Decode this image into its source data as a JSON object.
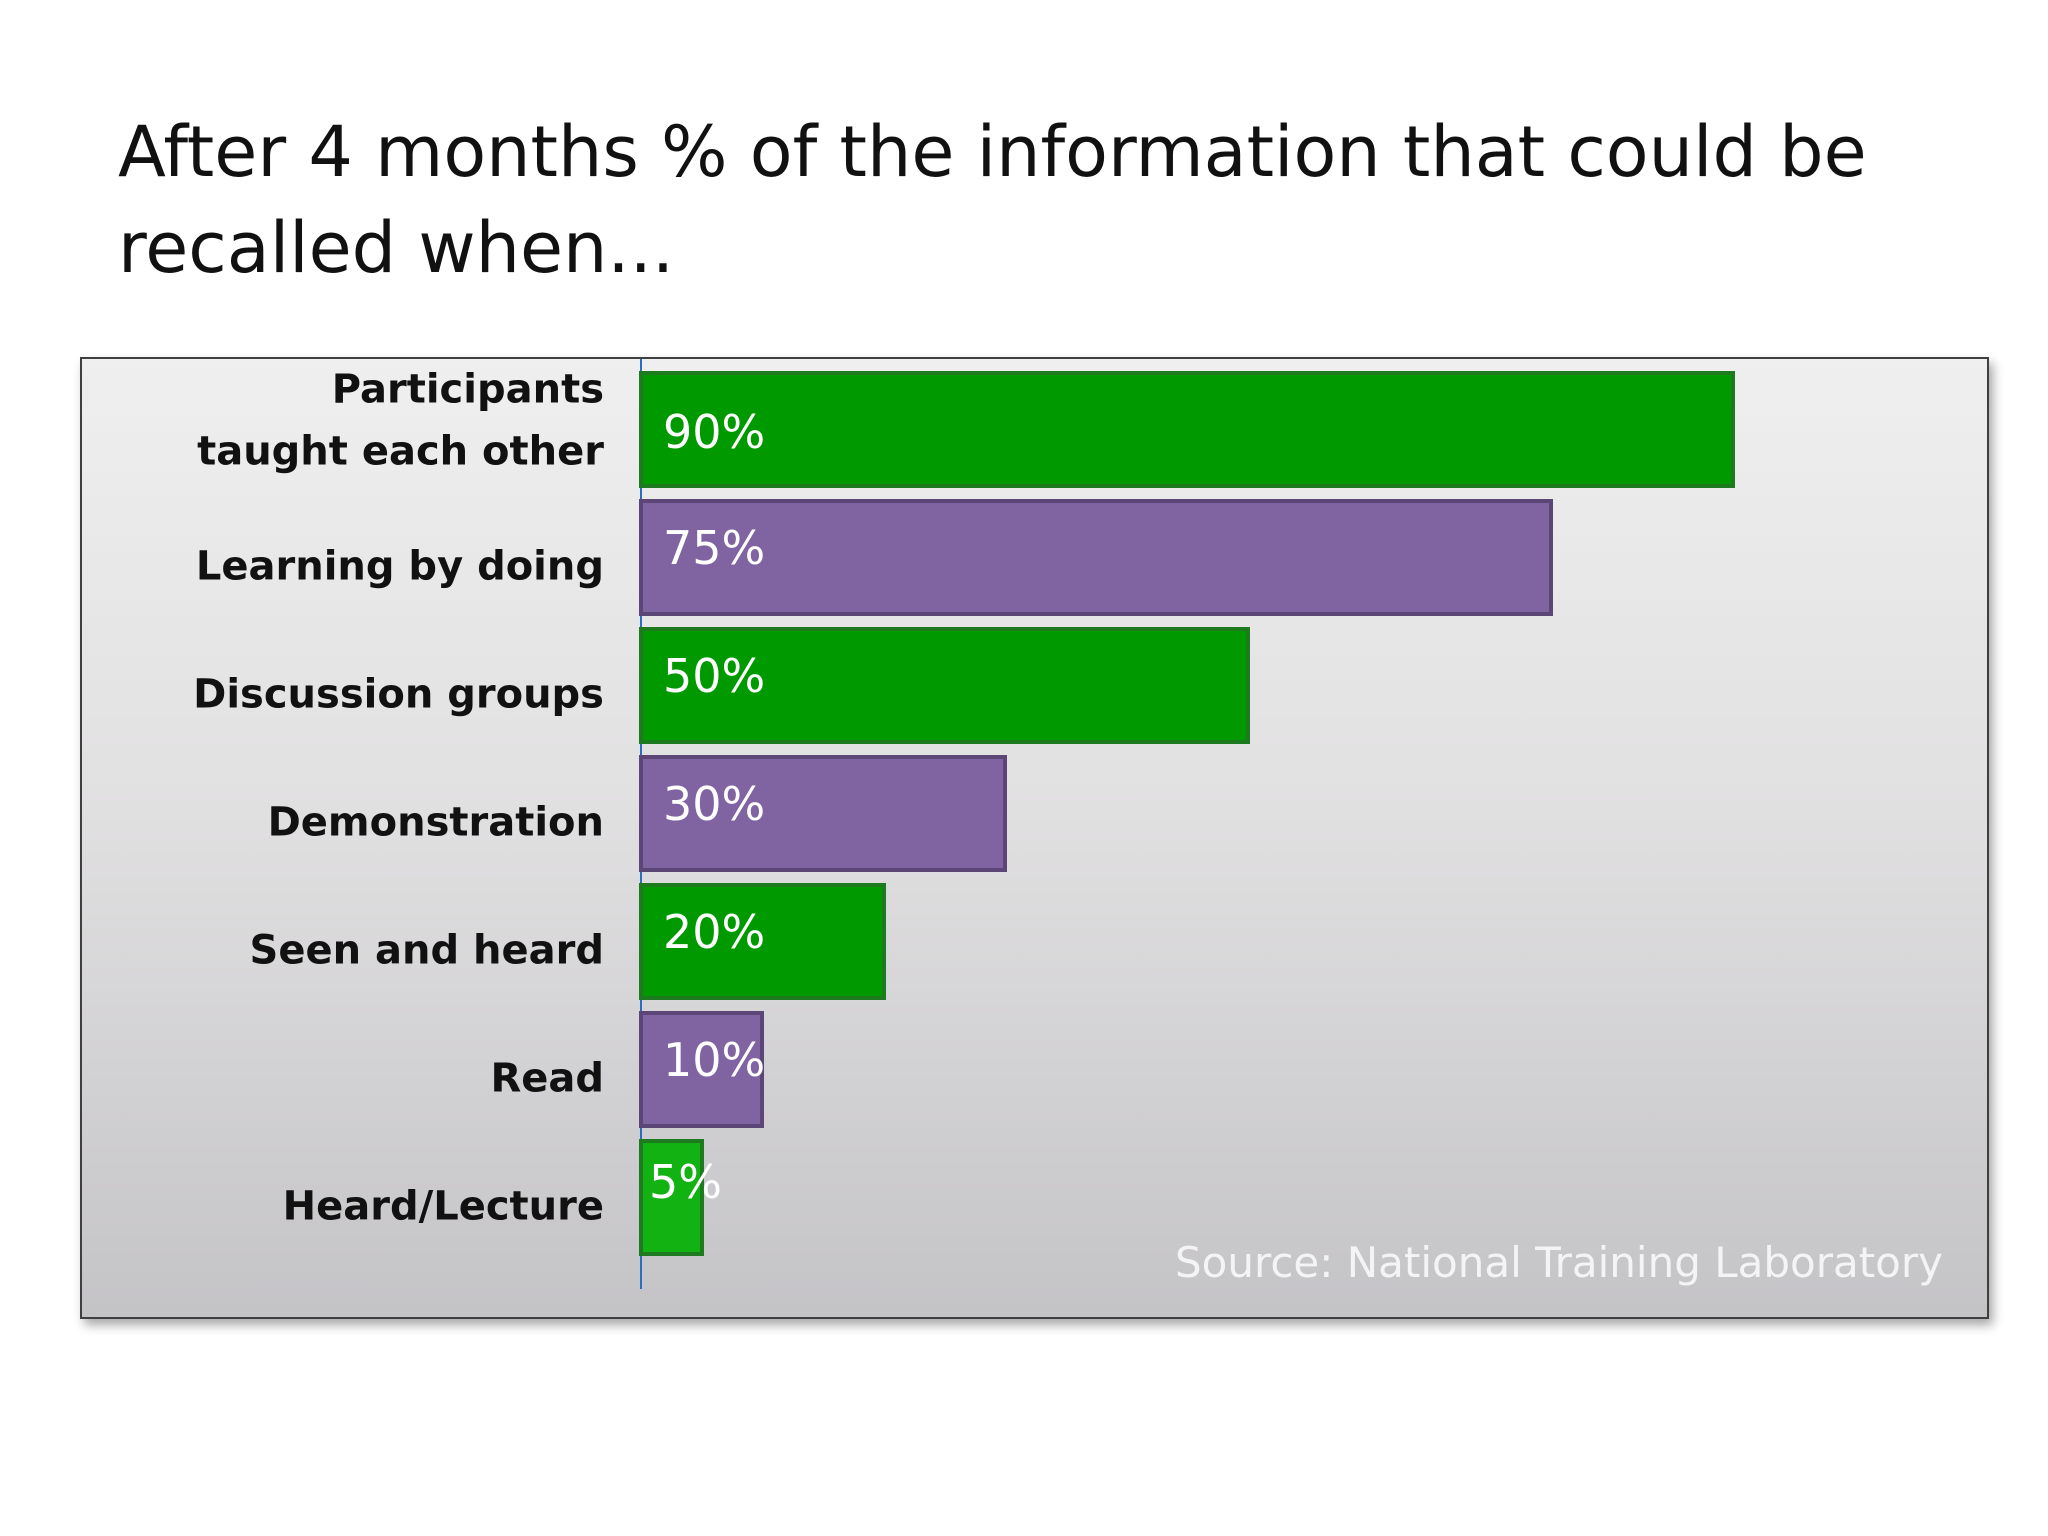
{
  "slide": {
    "title": "After 4 months % of the information that could be recalled when..."
  },
  "colors": {
    "green": "#009900",
    "green_border": "#1e7a1e",
    "green_light": "#12b212",
    "purple": "#8064a2",
    "purple_border": "#5c4678",
    "axis": "#2a6fbf"
  },
  "chart_data": {
    "type": "bar",
    "orientation": "horizontal",
    "title": "After 4 months % of the information that could be recalled when...",
    "categories": [
      [
        "Participants",
        "taught each other"
      ],
      [
        "Learning by doing"
      ],
      [
        "Discussion groups"
      ],
      [
        "Demonstration"
      ],
      [
        "Seen and heard"
      ],
      [
        "Read"
      ],
      [
        "Heard/Lecture"
      ]
    ],
    "values": [
      90,
      75,
      50,
      30,
      20,
      10,
      5
    ],
    "value_labels": [
      "90%",
      "75%",
      "50%",
      "30%",
      "20%",
      "10%",
      "5%"
    ],
    "bar_colors": [
      "green",
      "purple",
      "green",
      "purple",
      "green",
      "purple",
      "green"
    ],
    "xlim": [
      0,
      100
    ],
    "unit": "%",
    "grid": false,
    "legend": "none",
    "annotation": "Source: National Training Laboratory"
  }
}
